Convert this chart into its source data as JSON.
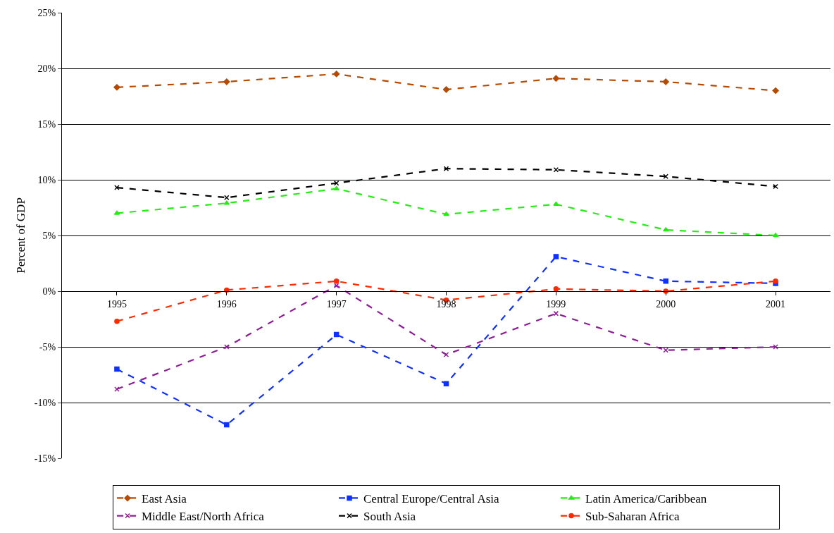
{
  "chart_data": {
    "type": "line",
    "ylabel": "Percent of GDP",
    "categories": [
      "1995",
      "1996",
      "1997",
      "1998",
      "1999",
      "2000",
      "2001"
    ],
    "series": [
      {
        "name": "East Asia",
        "color": "#b84a00",
        "marker": "diamond",
        "values": [
          18.3,
          18.8,
          19.5,
          18.1,
          19.1,
          18.8,
          18.0
        ]
      },
      {
        "name": "Central Europe/Central Asia",
        "color": "#1030ff",
        "marker": "square",
        "values": [
          -7.0,
          -12.0,
          -3.9,
          -8.3,
          3.1,
          0.9,
          0.7
        ]
      },
      {
        "name": "Latin America/Caribbean",
        "color": "#22ee11",
        "marker": "triangle",
        "values": [
          7.0,
          7.9,
          9.2,
          6.9,
          7.8,
          5.5,
          5.0
        ]
      },
      {
        "name": "Middle East/North Africa",
        "color": "#8e1e96",
        "marker": "cross",
        "values": [
          -8.8,
          -5.0,
          0.5,
          -5.7,
          -2.0,
          -5.3,
          -5.0
        ]
      },
      {
        "name": "South Asia",
        "color": "#000000",
        "marker": "cross",
        "values": [
          9.3,
          8.4,
          9.7,
          11.0,
          10.9,
          10.3,
          9.4
        ]
      },
      {
        "name": "Sub-Saharan Africa",
        "color": "#ff2a00",
        "marker": "circle",
        "values": [
          -2.7,
          0.1,
          0.9,
          -0.8,
          0.2,
          0.0,
          0.9
        ]
      }
    ],
    "ylim": [
      -15,
      25
    ],
    "yticks": [
      {
        "value": -15,
        "label": "-15%"
      },
      {
        "value": -10,
        "label": "-10%"
      },
      {
        "value": -5,
        "label": "-5%"
      },
      {
        "value": 0,
        "label": "0%"
      },
      {
        "value": 5,
        "label": "5%"
      },
      {
        "value": 10,
        "label": "10%"
      },
      {
        "value": 15,
        "label": "15%"
      },
      {
        "value": 20,
        "label": "20%"
      },
      {
        "value": 25,
        "label": "25%"
      }
    ],
    "grid": "y",
    "legend": "bottom",
    "line_style": "dashed"
  }
}
